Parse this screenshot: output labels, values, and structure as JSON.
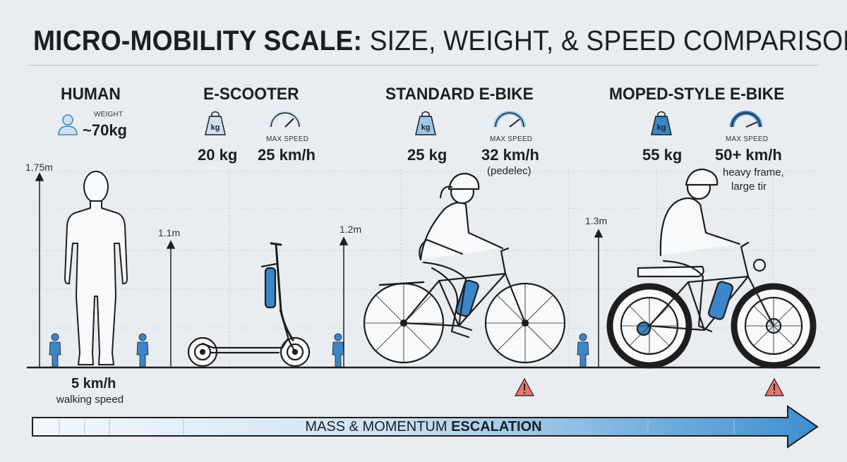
{
  "title": {
    "bold": "MICRO-MOBILITY SCALE:",
    "rest": " SIZE, WEIGHT, & SPEED COMPARISON"
  },
  "human": {
    "heading": "HUMAN",
    "weight_label": "WEIGHT",
    "weight_value": "~70kg",
    "height": "1.75m",
    "speed": "5 km/h",
    "speed_note": "walking speed"
  },
  "escooter": {
    "heading": "E-SCOOTER",
    "weight_icon_text": "kg",
    "weight": "20 kg",
    "speed_label": "MAX SPEED",
    "speed": "25 km/h",
    "height": "1.1m"
  },
  "ebike": {
    "heading": "STANDARD E-BIKE",
    "weight_icon_text": "kg",
    "weight": "25 kg",
    "speed_label": "MAX SPEED",
    "speed": "32 km/h",
    "speed_note": "(pedelec)",
    "height": "1.2m"
  },
  "moped": {
    "heading": "MOPED-STYLE E-BIKE",
    "weight_icon_text": "kg",
    "weight": "55 kg",
    "speed_label": "MAX SPEED",
    "speed": "50+ km/h",
    "speed_note_1": "heavy frame,",
    "speed_note_2": "large tir",
    "height": "1.3m"
  },
  "arrow": {
    "normal": "MASS & MOMENTUM ",
    "bold": "ESCALATION"
  },
  "colors": {
    "accent": "#3a86c8",
    "warning": "#e8766d",
    "line": "#1e1e1e",
    "grid": "#c4ccd6"
  }
}
